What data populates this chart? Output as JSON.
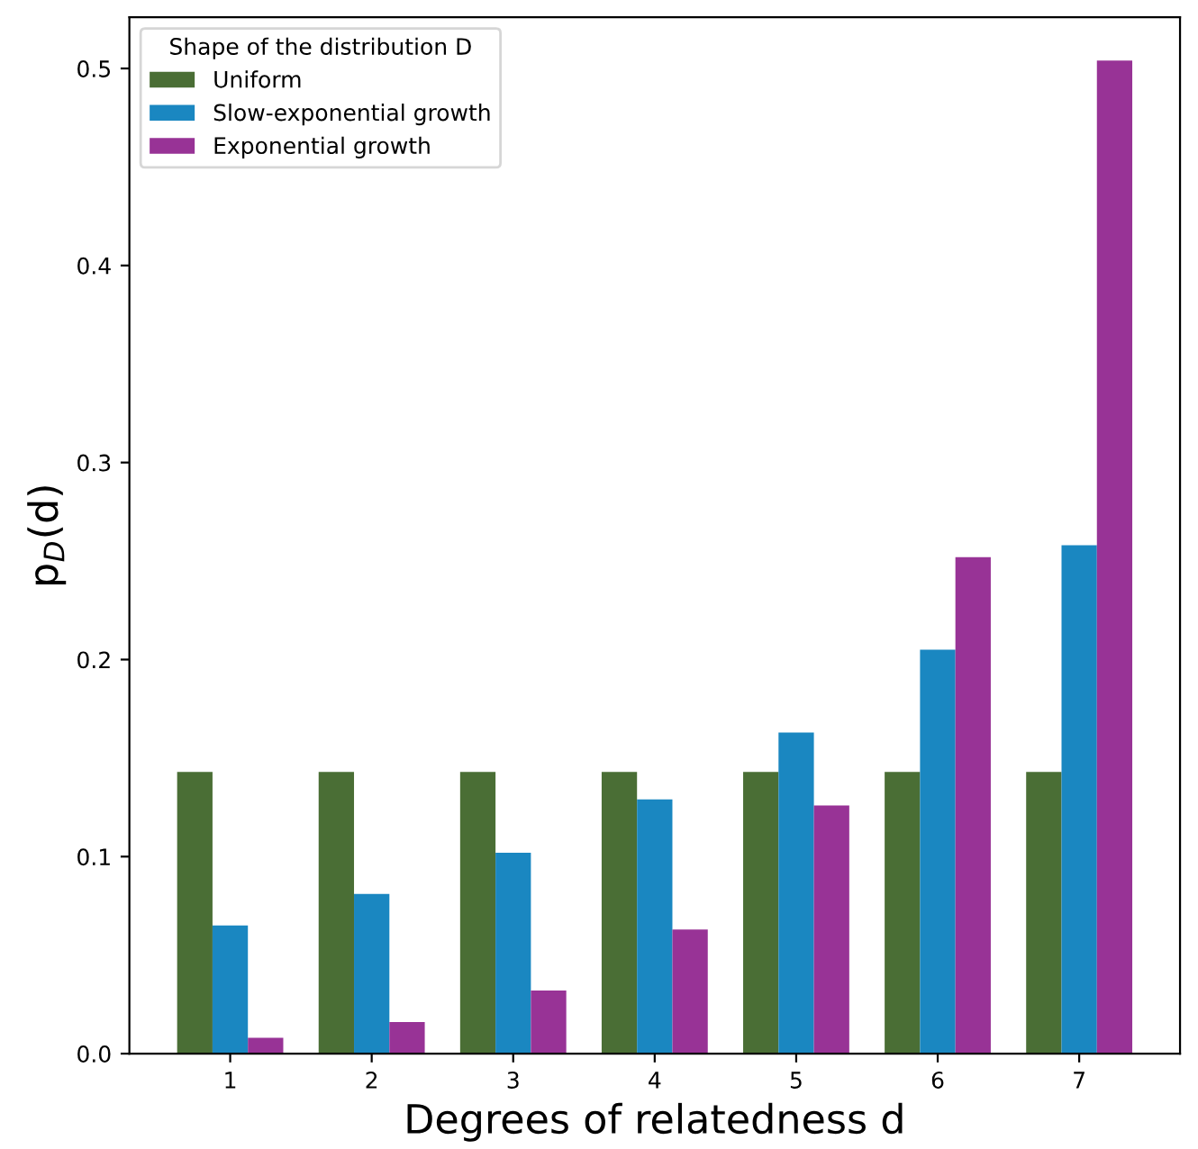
{
  "chart_data": {
    "type": "bar",
    "xlabel": "Degrees of relatedness d",
    "ylabel": "p$_{D}$(d)",
    "legend_title": "Shape of the distribution D",
    "categories": [
      "1",
      "2",
      "3",
      "4",
      "5",
      "6",
      "7"
    ],
    "series": [
      {
        "name": "Uniform",
        "color": "#4a6e35",
        "values": [
          0.143,
          0.143,
          0.143,
          0.143,
          0.143,
          0.143,
          0.143
        ]
      },
      {
        "name": "Slow-exponential growth",
        "color": "#1a87c1",
        "values": [
          0.065,
          0.081,
          0.102,
          0.129,
          0.163,
          0.205,
          0.258
        ]
      },
      {
        "name": "Exponential growth",
        "color": "#983396",
        "values": [
          0.008,
          0.016,
          0.032,
          0.063,
          0.126,
          0.252,
          0.504
        ]
      }
    ],
    "ylim": [
      0,
      0.526
    ],
    "yticks": [
      {
        "value": 0,
        "label": "0.0"
      },
      0.1,
      0.2,
      0.3,
      0.4,
      0.5
    ],
    "grid": false,
    "legend": "top left"
  }
}
